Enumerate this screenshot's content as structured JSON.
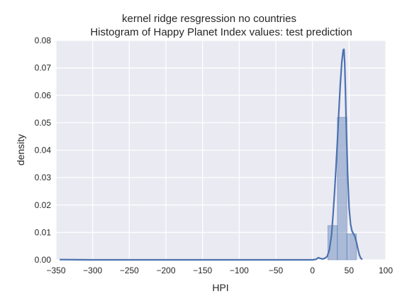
{
  "chart_data": {
    "type": "histogram",
    "title": "kernel ridge resgression no countries",
    "subtitle": "Histogram of Happy Planet Index values: test prediction",
    "xlabel": "HPI",
    "ylabel": "density",
    "xlim": [
      -350,
      100
    ],
    "ylim": [
      0,
      0.08
    ],
    "x_ticks": [
      -350,
      -300,
      -250,
      -200,
      -150,
      -100,
      -50,
      0,
      50,
      100
    ],
    "x_tick_labels": [
      "−350",
      "−300",
      "−250",
      "−200",
      "−150",
      "−100",
      "−50",
      "0",
      "50",
      "100"
    ],
    "y_ticks": [
      0.0,
      0.01,
      0.02,
      0.03,
      0.04,
      0.05,
      0.06,
      0.07,
      0.08
    ],
    "y_tick_labels": [
      "0.00",
      "0.01",
      "0.02",
      "0.03",
      "0.04",
      "0.05",
      "0.06",
      "0.07",
      "0.08"
    ],
    "grid": true,
    "bars": [
      {
        "x0": 21,
        "x1": 34,
        "density": 0.0125
      },
      {
        "x0": 34,
        "x1": 47,
        "density": 0.052
      },
      {
        "x0": 47,
        "x1": 60,
        "density": 0.0095
      }
    ],
    "kde": {
      "x": [
        -345,
        -300,
        -200,
        -100,
        0,
        5,
        8,
        11,
        14,
        17,
        20,
        23,
        26,
        28,
        30,
        32,
        34,
        36,
        38,
        40,
        42,
        43,
        44,
        45,
        46,
        48,
        50,
        52,
        54,
        56,
        58,
        60,
        62,
        64,
        66,
        68
      ],
      "y": [
        0.0001,
        0.0,
        0.0,
        0.0,
        0.0,
        0.0002,
        0.0008,
        0.0005,
        0.0003,
        0.0006,
        0.0012,
        0.0035,
        0.009,
        0.016,
        0.024,
        0.033,
        0.043,
        0.054,
        0.064,
        0.072,
        0.0765,
        0.0768,
        0.072,
        0.062,
        0.05,
        0.032,
        0.019,
        0.013,
        0.0105,
        0.0095,
        0.0085,
        0.0065,
        0.004,
        0.0018,
        0.0006,
        0.0001
      ]
    },
    "colors": {
      "background": "#eaeaf2",
      "grid": "#ffffff",
      "bar_fill": "#4c72b0",
      "line": "#4c72b0",
      "text": "#262626"
    }
  }
}
